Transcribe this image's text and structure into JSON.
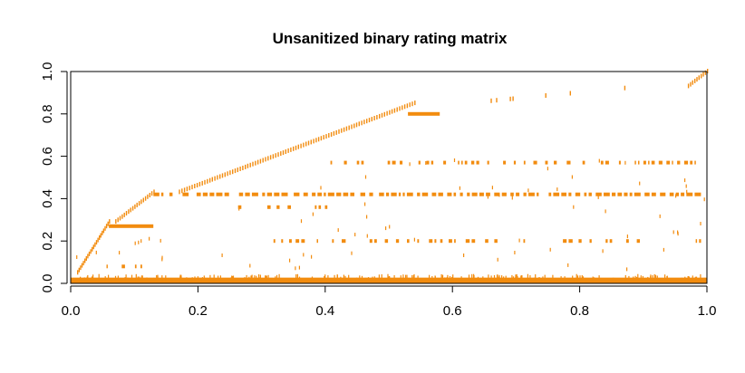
{
  "chart_data": {
    "type": "heatmap",
    "title": "Unsanitized binary rating matrix",
    "xlabel": "",
    "ylabel": "",
    "xlim": [
      0,
      1
    ],
    "ylim": [
      0,
      1
    ],
    "xticks": [
      0.0,
      0.2,
      0.4,
      0.6,
      0.8,
      1.0
    ],
    "xtick_labels": [
      "0.0",
      "0.2",
      "0.4",
      "0.6",
      "0.8",
      "1.0"
    ],
    "yticks": [
      0.0,
      0.2,
      0.4,
      0.6,
      0.8,
      1.0
    ],
    "ytick_labels": [
      "0.0",
      "0.2",
      "0.4",
      "0.6",
      "0.8",
      "1.0"
    ],
    "grid": false,
    "legend": "none",
    "mark_color": "#f28c0f",
    "features": {
      "bottom_band": {
        "y_from": 0.0,
        "y_to": 0.04,
        "x_from": 0.0,
        "x_to": 1.0,
        "description": "dense ratings along bottom rows"
      },
      "diagonal_segments": [
        {
          "x0": 0.01,
          "y0": 0.05,
          "x1": 0.06,
          "y1": 0.29
        },
        {
          "x0": 0.07,
          "y0": 0.29,
          "x1": 0.13,
          "y1": 0.43
        },
        {
          "x0": 0.17,
          "y0": 0.43,
          "x1": 0.54,
          "y1": 0.85
        },
        {
          "x0": 0.66,
          "y0": 0.86,
          "x1": 0.87,
          "y1": 0.92
        },
        {
          "x0": 0.97,
          "y0": 0.93,
          "x1": 1.0,
          "y1": 1.0
        }
      ],
      "horizontal_rows": [
        {
          "y": 0.27,
          "x_from": 0.06,
          "x_to": 0.13,
          "density": "solid"
        },
        {
          "y": 0.42,
          "x_from": 0.13,
          "x_to": 1.0,
          "density": "dense"
        },
        {
          "y": 0.57,
          "x_from": 0.38,
          "x_to": 0.99,
          "density": "sparse"
        },
        {
          "y": 0.2,
          "x_from": 0.3,
          "x_to": 1.0,
          "density": "sparse"
        },
        {
          "y": 0.36,
          "x_from": 0.26,
          "x_to": 0.4,
          "density": "sparse"
        },
        {
          "y": 0.8,
          "x_from": 0.53,
          "x_to": 0.58,
          "density": "solid"
        },
        {
          "y": 0.08,
          "x_from": 0.05,
          "x_to": 0.12,
          "density": "sparse"
        }
      ]
    }
  }
}
